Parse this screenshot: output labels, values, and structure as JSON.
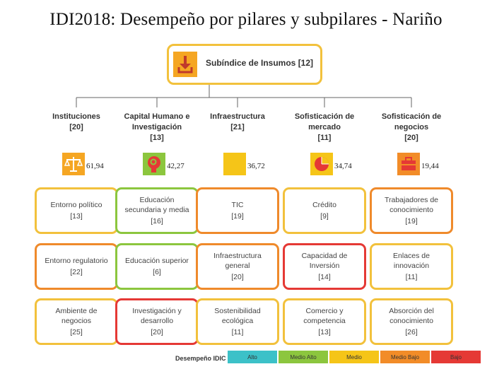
{
  "title": "IDI2018: Desempeño por pilares y subpilares - Nariño",
  "root": {
    "label": "Subíndice de Insumos [12]",
    "icon": "download-icon"
  },
  "pillars": [
    {
      "name": "Instituciones",
      "rank": "[20]",
      "score": "61,94",
      "icon": "scales-icon",
      "icon_color": "#f5a623",
      "subpillars": [
        {
          "name": "Entorno político",
          "rank": "[13]",
          "color": "#f2c13c"
        },
        {
          "name": "Entorno regulatorio",
          "rank": "[22]",
          "color": "#ef8a2b"
        },
        {
          "name": "Ambiente de negocios",
          "rank": "[25]",
          "color": "#f2c13c"
        }
      ]
    },
    {
      "name": "Capital Humano e Investigación",
      "rank": "[13]",
      "score": "42,27",
      "icon": "brain-gear-icon",
      "icon_color": "#8cc63e",
      "subpillars": [
        {
          "name": "Educación secundaria y media",
          "rank": "[16]",
          "color": "#8cc63e"
        },
        {
          "name": "Educación superior",
          "rank": "[6]",
          "color": "#8cc63e"
        },
        {
          "name": "Investigación y desarrollo",
          "rank": "[20]",
          "color": "#e53935"
        }
      ]
    },
    {
      "name": "Infraestructura",
      "rank": "[21]",
      "score": "36,72",
      "icon": "infrastructure-icon",
      "icon_color": "#f5c518",
      "subpillars": [
        {
          "name": "TIC",
          "rank": "[19]",
          "color": "#ef8a2b"
        },
        {
          "name": "Infraestructura general",
          "rank": "[20]",
          "color": "#ef8a2b"
        },
        {
          "name": "Sostenibilidad ecológica",
          "rank": "[11]",
          "color": "#f2c13c"
        }
      ]
    },
    {
      "name": "Sofisticación de mercado",
      "rank": "[11]",
      "score": "34,74",
      "icon": "pie-chart-icon",
      "icon_color": "#f5c518",
      "subpillars": [
        {
          "name": "Crédito",
          "rank": "[9]",
          "color": "#f2c13c"
        },
        {
          "name": "Capacidad de Inversión",
          "rank": "[14]",
          "color": "#e53935"
        },
        {
          "name": "Comercio y competencia",
          "rank": "[13]",
          "color": "#f2c13c"
        }
      ]
    },
    {
      "name": "Sofisticación de negocios",
      "rank": "[20]",
      "score": "19,44",
      "icon": "briefcase-icon",
      "icon_color": "#f28c28",
      "subpillars": [
        {
          "name": "Trabajadores de conocimiento",
          "rank": "[19]",
          "color": "#ef8a2b"
        },
        {
          "name": "Enlaces de innovación",
          "rank": "[11]",
          "color": "#f2c13c"
        },
        {
          "name": "Absorción del conocimiento",
          "rank": "[26]",
          "color": "#f2c13c"
        }
      ]
    }
  ],
  "legend": {
    "label": "Desempeño IDIC",
    "items": [
      {
        "label": "Alto",
        "color": "#3cc1c8"
      },
      {
        "label": "Medio Alto",
        "color": "#8cc63e"
      },
      {
        "label": "Medio",
        "color": "#f5c518"
      },
      {
        "label": "Medio Bajo",
        "color": "#f28c28"
      },
      {
        "label": "Bajo",
        "color": "#e53935"
      }
    ]
  }
}
